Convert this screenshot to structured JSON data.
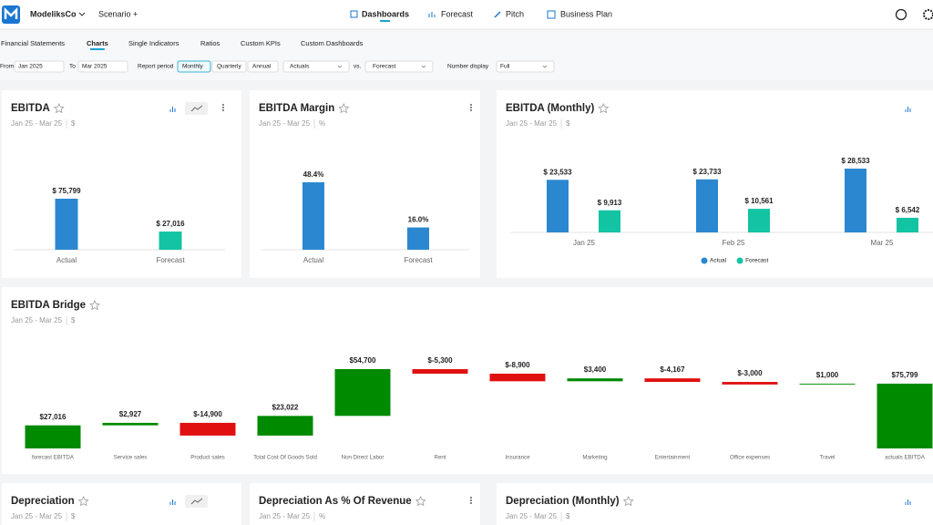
{
  "nav": {
    "brand": "ModeliksCo",
    "scenario": "Scenario",
    "tabs": [
      "Dashboards",
      "Forecast",
      "Pitch",
      "Business Plan"
    ]
  },
  "subtabs": [
    "Financial Statements",
    "Charts",
    "Single Indicators",
    "Ratios",
    "Custom KPIs",
    "Custom Dashboards"
  ],
  "filters": {
    "from_label": "From",
    "from": "Jan 2025",
    "to_label": "To",
    "to": "Mar 2025",
    "period_label": "Report period",
    "periods": [
      "Monthly",
      "Quarterly",
      "Annual"
    ],
    "compare_a": "Actuals",
    "vs": "vs.",
    "compare_b": "Forecast",
    "display_label": "Number display",
    "display": "Full"
  },
  "chart_data": [
    {
      "type": "bar",
      "title": "EBITDA",
      "subtitle": "Jan 25 - Mar 25",
      "unit": "$",
      "categories": [
        "Actual",
        "Forecast"
      ],
      "values": [
        75799,
        27016
      ],
      "value_labels": [
        "$ 75,799",
        "$ 27,016"
      ],
      "colors": [
        "#2b88d0",
        "#13c4a3"
      ]
    },
    {
      "type": "bar",
      "title": "EBITDA Margin",
      "subtitle": "Jan 25 - Mar 25",
      "unit": "%",
      "categories": [
        "Actual",
        "Forecast"
      ],
      "values": [
        48.4,
        16
      ],
      "value_labels": [
        "48.4%",
        "16.0%"
      ],
      "colors": [
        "#2b88d0",
        "#2b88d0"
      ]
    },
    {
      "type": "grouped_bar",
      "title": "EBITDA (Monthly)",
      "subtitle": "Jan 25 - Mar 25",
      "unit": "$",
      "categories": [
        "Jan 25",
        "Feb 25",
        "Mar 25"
      ],
      "series": [
        {
          "name": "Actual",
          "color": "#2b88d0",
          "values": [
            23533,
            23733,
            28533
          ],
          "value_labels": [
            "$ 23,533",
            "$ 23,733",
            "$ 28,533"
          ]
        },
        {
          "name": "Forecast",
          "color": "#13c4a3",
          "values": [
            9913,
            10561,
            6542
          ],
          "value_labels": [
            "$ 9,913",
            "$ 10,561",
            "$ 6,542"
          ]
        }
      ]
    },
    {
      "type": "waterfall",
      "title": "EBITDA Bridge",
      "subtitle": "Jan 25 - Mar 25",
      "unit": "$",
      "categories": [
        "forecast EBITDA",
        "Service sales",
        "Product sales",
        "Total Cost Of Goods Sold",
        "Non Direct Labor",
        "Rent",
        "Insurance",
        "Marketing",
        "Entertainment",
        "Office expenses",
        "Travel",
        "actuals EBITDA"
      ],
      "values": [
        27016,
        2927,
        -14900,
        23022,
        54700,
        -5300,
        -8900,
        3400,
        -4167,
        -3000,
        1000,
        75799
      ],
      "value_labels": [
        "$27,016",
        "$2,927",
        "$-14,900",
        "$23,022",
        "$54,700",
        "$-5,300",
        "$-8,900",
        "$3,400",
        "$-4,167",
        "$-3,000",
        "$1,000",
        "$75,799"
      ],
      "color_positive": "#008a00",
      "color_negative": "#e01010"
    }
  ],
  "more_cards": [
    {
      "title": "Depreciation",
      "subtitle": "Jan 25 - Mar 25",
      "unit": "$"
    },
    {
      "title": "Depreciation As % Of Revenue",
      "subtitle": "Jan 25 - Mar 25",
      "unit": "%"
    },
    {
      "title": "Depreciation (Monthly)",
      "subtitle": "Jan 25 - Mar 25",
      "unit": "$"
    }
  ]
}
